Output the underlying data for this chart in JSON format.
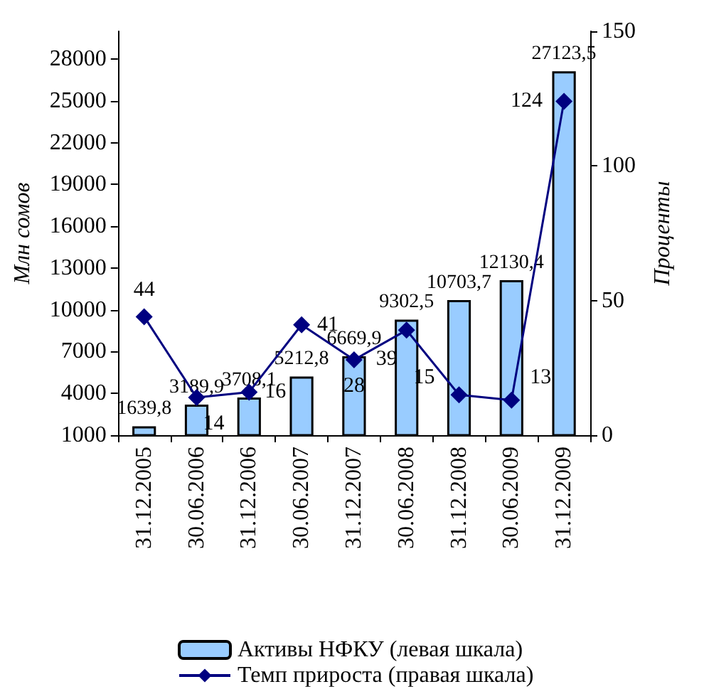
{
  "chart_data": {
    "type": "bar",
    "categories": [
      "31.12.2005",
      "30.06.2006",
      "31.12.2006",
      "30.06.2007",
      "31.12.2007",
      "30.06.2008",
      "31.12.2008",
      "30.06.2009",
      "31.12.2009"
    ],
    "series": [
      {
        "name": "Активы НФКУ (левая шкала)",
        "color": "#99ccff",
        "values": [
          1639.8,
          3189.9,
          3708.1,
          5212.8,
          6669.9,
          9302.5,
          10703.7,
          12130.4,
          27123.5
        ],
        "value_labels": [
          "1639,8",
          "3189,9",
          "3708,1",
          "5212,8",
          "6669,9",
          "9302,5",
          "10703,7",
          "12130,4",
          "27123,5"
        ]
      },
      {
        "name": "Темп прироста (правая шкала)",
        "type": "line",
        "axis": "y2",
        "color": "#000080",
        "values": [
          44,
          14,
          16,
          41,
          28,
          39,
          15,
          13,
          124
        ]
      }
    ],
    "ylabel": "Млн сомов",
    "y2label": "Проценты",
    "ylim": [
      1000,
      30000
    ],
    "yticks": [
      1000,
      4000,
      7000,
      10000,
      13000,
      16000,
      19000,
      22000,
      25000,
      28000
    ],
    "y2lim": [
      0,
      150
    ],
    "y2ticks": [
      0,
      50,
      100,
      150
    ],
    "data_labels": true,
    "grid": false,
    "legend": "bottom",
    "marker": "diamond",
    "line_style": "solid"
  }
}
